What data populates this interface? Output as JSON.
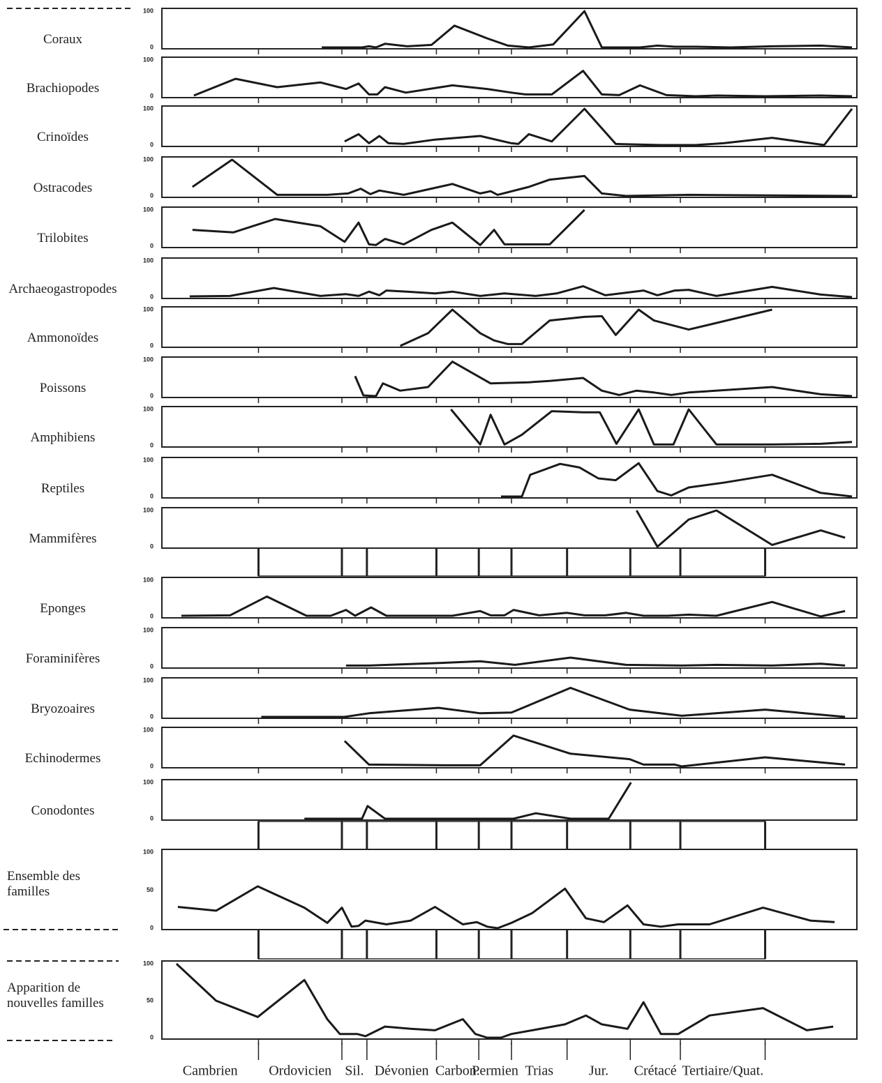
{
  "chart_data": [
    {
      "type": "line",
      "title": "Coraux",
      "color": "#1a1a1a",
      "xlim": [
        0,
        100
      ],
      "ylim": [
        0,
        100
      ],
      "yticks": [
        0,
        100
      ],
      "x": [
        23,
        26.3,
        28.8,
        29.8,
        30.8,
        32.1,
        35.3,
        38.8,
        42.1,
        46.8,
        49.8,
        52.8,
        56.3,
        60.8,
        63.3,
        68.8,
        71.3,
        73.8,
        76.8,
        81.8,
        87.8,
        94.8,
        99.3
      ],
      "values": [
        0,
        0,
        0,
        3,
        0,
        10,
        3,
        7,
        60,
        25,
        5,
        0,
        8,
        100,
        0,
        0,
        5,
        2,
        2,
        0,
        3,
        5,
        0
      ]
    },
    {
      "type": "line",
      "title": "Brachiopodes",
      "color": "#1a1a1a",
      "xlim": [
        0,
        100
      ],
      "ylim": [
        0,
        100
      ],
      "yticks": [
        0,
        100
      ],
      "x": [
        4.6,
        10.6,
        16.6,
        22.8,
        26.5,
        28.3,
        29.8,
        31,
        32.1,
        35.1,
        41.8,
        46.8,
        50.3,
        52.3,
        56.1,
        60.6,
        63.3,
        65.8,
        68.8,
        72.6,
        76.8,
        79.8,
        86.8,
        94.8,
        99.3
      ],
      "values": [
        2,
        48,
        25,
        38,
        20,
        35,
        5,
        5,
        25,
        10,
        30,
        20,
        10,
        5,
        5,
        70,
        5,
        3,
        30,
        3,
        0,
        2,
        0,
        2,
        0
      ]
    },
    {
      "type": "line",
      "title": "Crinoïdes",
      "color": "#1a1a1a",
      "xlim": [
        0,
        100
      ],
      "ylim": [
        0,
        100
      ],
      "yticks": [
        0,
        100
      ],
      "x": [
        26.3,
        28.3,
        29.8,
        31.3,
        32.6,
        34.8,
        39.3,
        45.8,
        50.3,
        51.3,
        52.8,
        56.1,
        60.8,
        65.3,
        71.8,
        76.8,
        80.8,
        87.8,
        95.3,
        99.3
      ],
      "values": [
        10,
        30,
        5,
        25,
        5,
        3,
        15,
        25,
        5,
        3,
        30,
        10,
        100,
        3,
        0,
        0,
        5,
        20,
        0,
        100
      ]
    },
    {
      "type": "line",
      "title": "Ostracodes",
      "color": "#1a1a1a",
      "xlim": [
        0,
        100
      ],
      "ylim": [
        0,
        100
      ],
      "yticks": [
        0,
        100
      ],
      "x": [
        4.4,
        10.1,
        16.6,
        23.8,
        26.8,
        28.6,
        30,
        31.3,
        34.8,
        41.8,
        45.8,
        47.3,
        48.3,
        52.8,
        55.8,
        60.8,
        63.3,
        66.8,
        75.8,
        99.3
      ],
      "values": [
        25,
        100,
        3,
        3,
        7,
        20,
        5,
        15,
        3,
        33,
        7,
        13,
        3,
        25,
        45,
        55,
        7,
        0,
        3,
        0
      ]
    },
    {
      "type": "line",
      "title": "Trilobites",
      "color": "#1a1a1a",
      "xlim": [
        0,
        100
      ],
      "ylim": [
        0,
        100
      ],
      "yticks": [
        0,
        100
      ],
      "x": [
        4.4,
        10.3,
        16.3,
        22.8,
        26.3,
        28.3,
        29.8,
        30.8,
        32.1,
        34.8,
        38.8,
        41.8,
        45.8,
        47.8,
        49.3,
        55.8,
        60.8
      ],
      "values": [
        45,
        38,
        75,
        55,
        12,
        65,
        5,
        3,
        20,
        5,
        45,
        65,
        3,
        45,
        5,
        5,
        100
      ]
    },
    {
      "type": "line",
      "title": "Archaeogastropodes",
      "color": "#1a1a1a",
      "xlim": [
        0,
        100
      ],
      "ylim": [
        0,
        100
      ],
      "yticks": [
        0,
        100
      ],
      "x": [
        4,
        9.8,
        16.1,
        22.8,
        26.5,
        28.3,
        29.8,
        31.3,
        32.3,
        35.3,
        39.3,
        41.8,
        45.8,
        49.3,
        53.8,
        56.8,
        60.6,
        63.8,
        69.3,
        71.3,
        73.8,
        75.8,
        79.8,
        87.8,
        94.8,
        99.3
      ],
      "values": [
        2,
        3,
        25,
        3,
        8,
        3,
        15,
        5,
        18,
        15,
        10,
        15,
        3,
        10,
        3,
        10,
        30,
        5,
        18,
        5,
        18,
        20,
        3,
        28,
        7,
        0
      ]
    },
    {
      "type": "line",
      "title": "Ammonoïdes",
      "color": "#1a1a1a",
      "xlim": [
        0,
        100
      ],
      "ylim": [
        0,
        100
      ],
      "yticks": [
        0,
        100
      ],
      "x": [
        34.3,
        38.3,
        41.8,
        45.8,
        47.8,
        49.8,
        51.8,
        55.8,
        60.8,
        63.3,
        65.3,
        68.6,
        70.8,
        75.8,
        87.8
      ],
      "values": [
        0,
        35,
        100,
        35,
        15,
        5,
        5,
        70,
        80,
        82,
        30,
        100,
        70,
        45,
        100
      ]
    },
    {
      "type": "line",
      "title": "Poissons",
      "color": "#1a1a1a",
      "xlim": [
        0,
        100
      ],
      "ylim": [
        0,
        100
      ],
      "yticks": [
        0,
        100
      ],
      "x": [
        27.8,
        29,
        30.8,
        31.8,
        34.3,
        38.3,
        41.8,
        47.3,
        52.8,
        55.8,
        60.6,
        63.3,
        65.8,
        68.3,
        70.8,
        73.3,
        75.8,
        87.8,
        94.8,
        99.3
      ],
      "values": [
        55,
        2,
        0,
        35,
        15,
        25,
        95,
        35,
        38,
        42,
        50,
        15,
        3,
        15,
        10,
        3,
        10,
        25,
        5,
        0
      ]
    },
    {
      "type": "line",
      "title": "Amphibiens",
      "color": "#1a1a1a",
      "xlim": [
        0,
        100
      ],
      "ylim": [
        0,
        100
      ],
      "yticks": [
        0,
        100
      ],
      "x": [
        41.6,
        45.8,
        47.3,
        49.3,
        51.8,
        56.1,
        60.6,
        63,
        65.4,
        68.6,
        70.8,
        73.6,
        75.8,
        79.8,
        87.8,
        94.8,
        99.3
      ],
      "values": [
        100,
        3,
        85,
        3,
        30,
        95,
        92,
        92,
        5,
        100,
        3,
        3,
        100,
        3,
        3,
        5,
        10
      ]
    },
    {
      "type": "line",
      "title": "Reptiles",
      "color": "#1a1a1a",
      "xlim": [
        0,
        100
      ],
      "ylim": [
        0,
        100
      ],
      "yticks": [
        0,
        100
      ],
      "x": [
        48.8,
        51.8,
        53,
        57.3,
        60.1,
        62.8,
        65.3,
        68.6,
        71.3,
        73.3,
        75.8,
        80.8,
        87.8,
        94.8,
        99.3
      ],
      "values": [
        0,
        0,
        60,
        90,
        80,
        50,
        45,
        92,
        15,
        3,
        25,
        38,
        60,
        10,
        0
      ]
    },
    {
      "type": "line",
      "title": "Mammifères",
      "color": "#1a1a1a",
      "xlim": [
        0,
        100
      ],
      "ylim": [
        0,
        100
      ],
      "yticks": [
        0,
        100
      ],
      "x": [
        68.3,
        71.3,
        75.8,
        79.8,
        87.8,
        94.8,
        98.3
      ],
      "values": [
        100,
        0,
        75,
        100,
        5,
        45,
        25
      ]
    },
    {
      "type": "line",
      "title": "Eponges",
      "color": "#1a1a1a",
      "xlim": [
        0,
        100
      ],
      "ylim": [
        0,
        100
      ],
      "yticks": [
        0,
        100
      ],
      "x": [
        2.8,
        9.8,
        15.1,
        20.8,
        24.3,
        26.5,
        27.8,
        30.1,
        32.3,
        36.8,
        41.8,
        45.8,
        47.3,
        49.3,
        50.6,
        54.3,
        58.3,
        60.8,
        63.8,
        66.8,
        69.3,
        72.8,
        75.8,
        79.8,
        87.8,
        94.8,
        98.3
      ],
      "values": [
        2,
        3,
        55,
        2,
        2,
        18,
        2,
        25,
        2,
        2,
        2,
        15,
        3,
        3,
        18,
        3,
        10,
        3,
        3,
        10,
        2,
        2,
        5,
        2,
        40,
        0,
        15
      ]
    },
    {
      "type": "line",
      "title": "Foraminifères",
      "color": "#1a1a1a",
      "xlim": [
        0,
        100
      ],
      "ylim": [
        0,
        100
      ],
      "yticks": [
        0,
        100
      ],
      "x": [
        26.5,
        29.8,
        39.8,
        45.8,
        50.8,
        58.8,
        66.8,
        74.8,
        79.8,
        87.8,
        94.8,
        98.3
      ],
      "values": [
        3,
        3,
        10,
        15,
        5,
        25,
        5,
        3,
        5,
        3,
        8,
        3
      ]
    },
    {
      "type": "line",
      "title": "Bryozoaires",
      "color": "#1a1a1a",
      "xlim": [
        0,
        100
      ],
      "ylim": [
        0,
        100
      ],
      "yticks": [
        0,
        100
      ],
      "x": [
        14.3,
        26.3,
        29.8,
        39.8,
        45.8,
        50.3,
        58.8,
        67.3,
        74.8,
        86.8,
        98.3
      ],
      "values": [
        0,
        0,
        10,
        25,
        10,
        12,
        80,
        20,
        3,
        20,
        0
      ]
    },
    {
      "type": "line",
      "title": "Echinodermes",
      "color": "#1a1a1a",
      "xlim": [
        0,
        100
      ],
      "ylim": [
        0,
        100
      ],
      "yticks": [
        0,
        100
      ],
      "x": [
        26.3,
        29.8,
        40.8,
        45.8,
        50.6,
        58.8,
        67.3,
        69.3,
        73.8,
        74.8,
        86.8,
        98.3
      ],
      "values": [
        70,
        5,
        3,
        3,
        85,
        35,
        20,
        5,
        5,
        0,
        25,
        5
      ]
    },
    {
      "type": "line",
      "title": "Conodontes",
      "color": "#1a1a1a",
      "xlim": [
        0,
        100
      ],
      "ylim": [
        0,
        100
      ],
      "yticks": [
        0,
        100
      ],
      "x": [
        20.5,
        26.3,
        28.8,
        29.6,
        32.1,
        38.8,
        45.8,
        50.6,
        53.8,
        58.8,
        64.3,
        67.5
      ],
      "values": [
        0,
        0,
        0,
        35,
        0,
        0,
        0,
        0,
        15,
        0,
        0,
        100
      ]
    },
    {
      "type": "line",
      "title": "Ensemble des familles",
      "color": "#1a1a1a",
      "xlim": [
        0,
        100
      ],
      "ylim": [
        0,
        100
      ],
      "yticks": [
        0,
        50,
        100
      ],
      "x": [
        2.3,
        7.8,
        13.8,
        20.5,
        23.8,
        25.9,
        27.3,
        28.3,
        29.3,
        32.3,
        35.8,
        39.3,
        43.3,
        45.3,
        46.8,
        48.3,
        50.3,
        53.3,
        58,
        61,
        63.6,
        67,
        69.3,
        71.8,
        74.3,
        78.8,
        86.5,
        93.3,
        96.8
      ],
      "values": [
        28,
        23,
        55,
        27,
        7,
        27,
        2,
        3,
        10,
        5,
        10,
        28,
        5,
        8,
        2,
        0,
        7,
        20,
        52,
        13,
        8,
        30,
        5,
        2,
        5,
        5,
        27,
        10,
        8
      ]
    },
    {
      "type": "line",
      "title": "Apparition de nouvelles familles",
      "color": "#1a1a1a",
      "xlim": [
        0,
        100
      ],
      "ylim": [
        0,
        100
      ],
      "yticks": [
        0,
        50,
        100
      ],
      "x": [
        2.1,
        7.8,
        13.8,
        20.5,
        23.8,
        25.6,
        26.8,
        28.1,
        29.3,
        32.1,
        35.8,
        39.3,
        43.3,
        45.1,
        46.8,
        48.8,
        50.3,
        53.3,
        58,
        61,
        63.3,
        67,
        69.3,
        71.8,
        74.3,
        78.8,
        86.5,
        92.8,
        96.6
      ],
      "values": [
        100,
        50,
        28,
        78,
        25,
        5,
        5,
        5,
        2,
        15,
        12,
        10,
        25,
        5,
        0,
        0,
        5,
        10,
        18,
        30,
        18,
        12,
        48,
        5,
        5,
        30,
        40,
        10,
        15
      ]
    }
  ],
  "periods": {
    "labels": [
      "Cambrien",
      "Ordovicien",
      "Sil.",
      "Dévonien",
      "Carbon.",
      "Permien",
      "Trias",
      "Jur.",
      "Crétacé",
      "Tertiaire/Quat."
    ],
    "boundaries": [
      13.9,
      25.9,
      29.5,
      39.5,
      45.6,
      50.3,
      58.3,
      67.4,
      74.6,
      86.8
    ]
  }
}
